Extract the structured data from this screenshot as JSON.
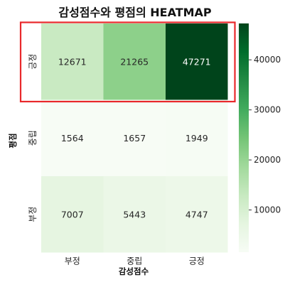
{
  "chart_data": {
    "type": "heatmap",
    "title": "감성점수와 평점의 HEATMAP",
    "xlabel": "감성점수",
    "ylabel": "평점",
    "x_categories": [
      "부정",
      "중립",
      "긍정"
    ],
    "y_categories": [
      "긍정",
      "중립",
      "부정"
    ],
    "values": [
      [
        12671,
        21265,
        47271
      ],
      [
        1564,
        1657,
        1949
      ],
      [
        7007,
        5443,
        4747
      ]
    ],
    "colormap": "Greens",
    "colorbar": {
      "min": 1564,
      "max": 47271,
      "ticks": [
        10000,
        20000,
        30000,
        40000
      ]
    },
    "highlight": {
      "row": 0,
      "color": "#e8282b"
    }
  }
}
